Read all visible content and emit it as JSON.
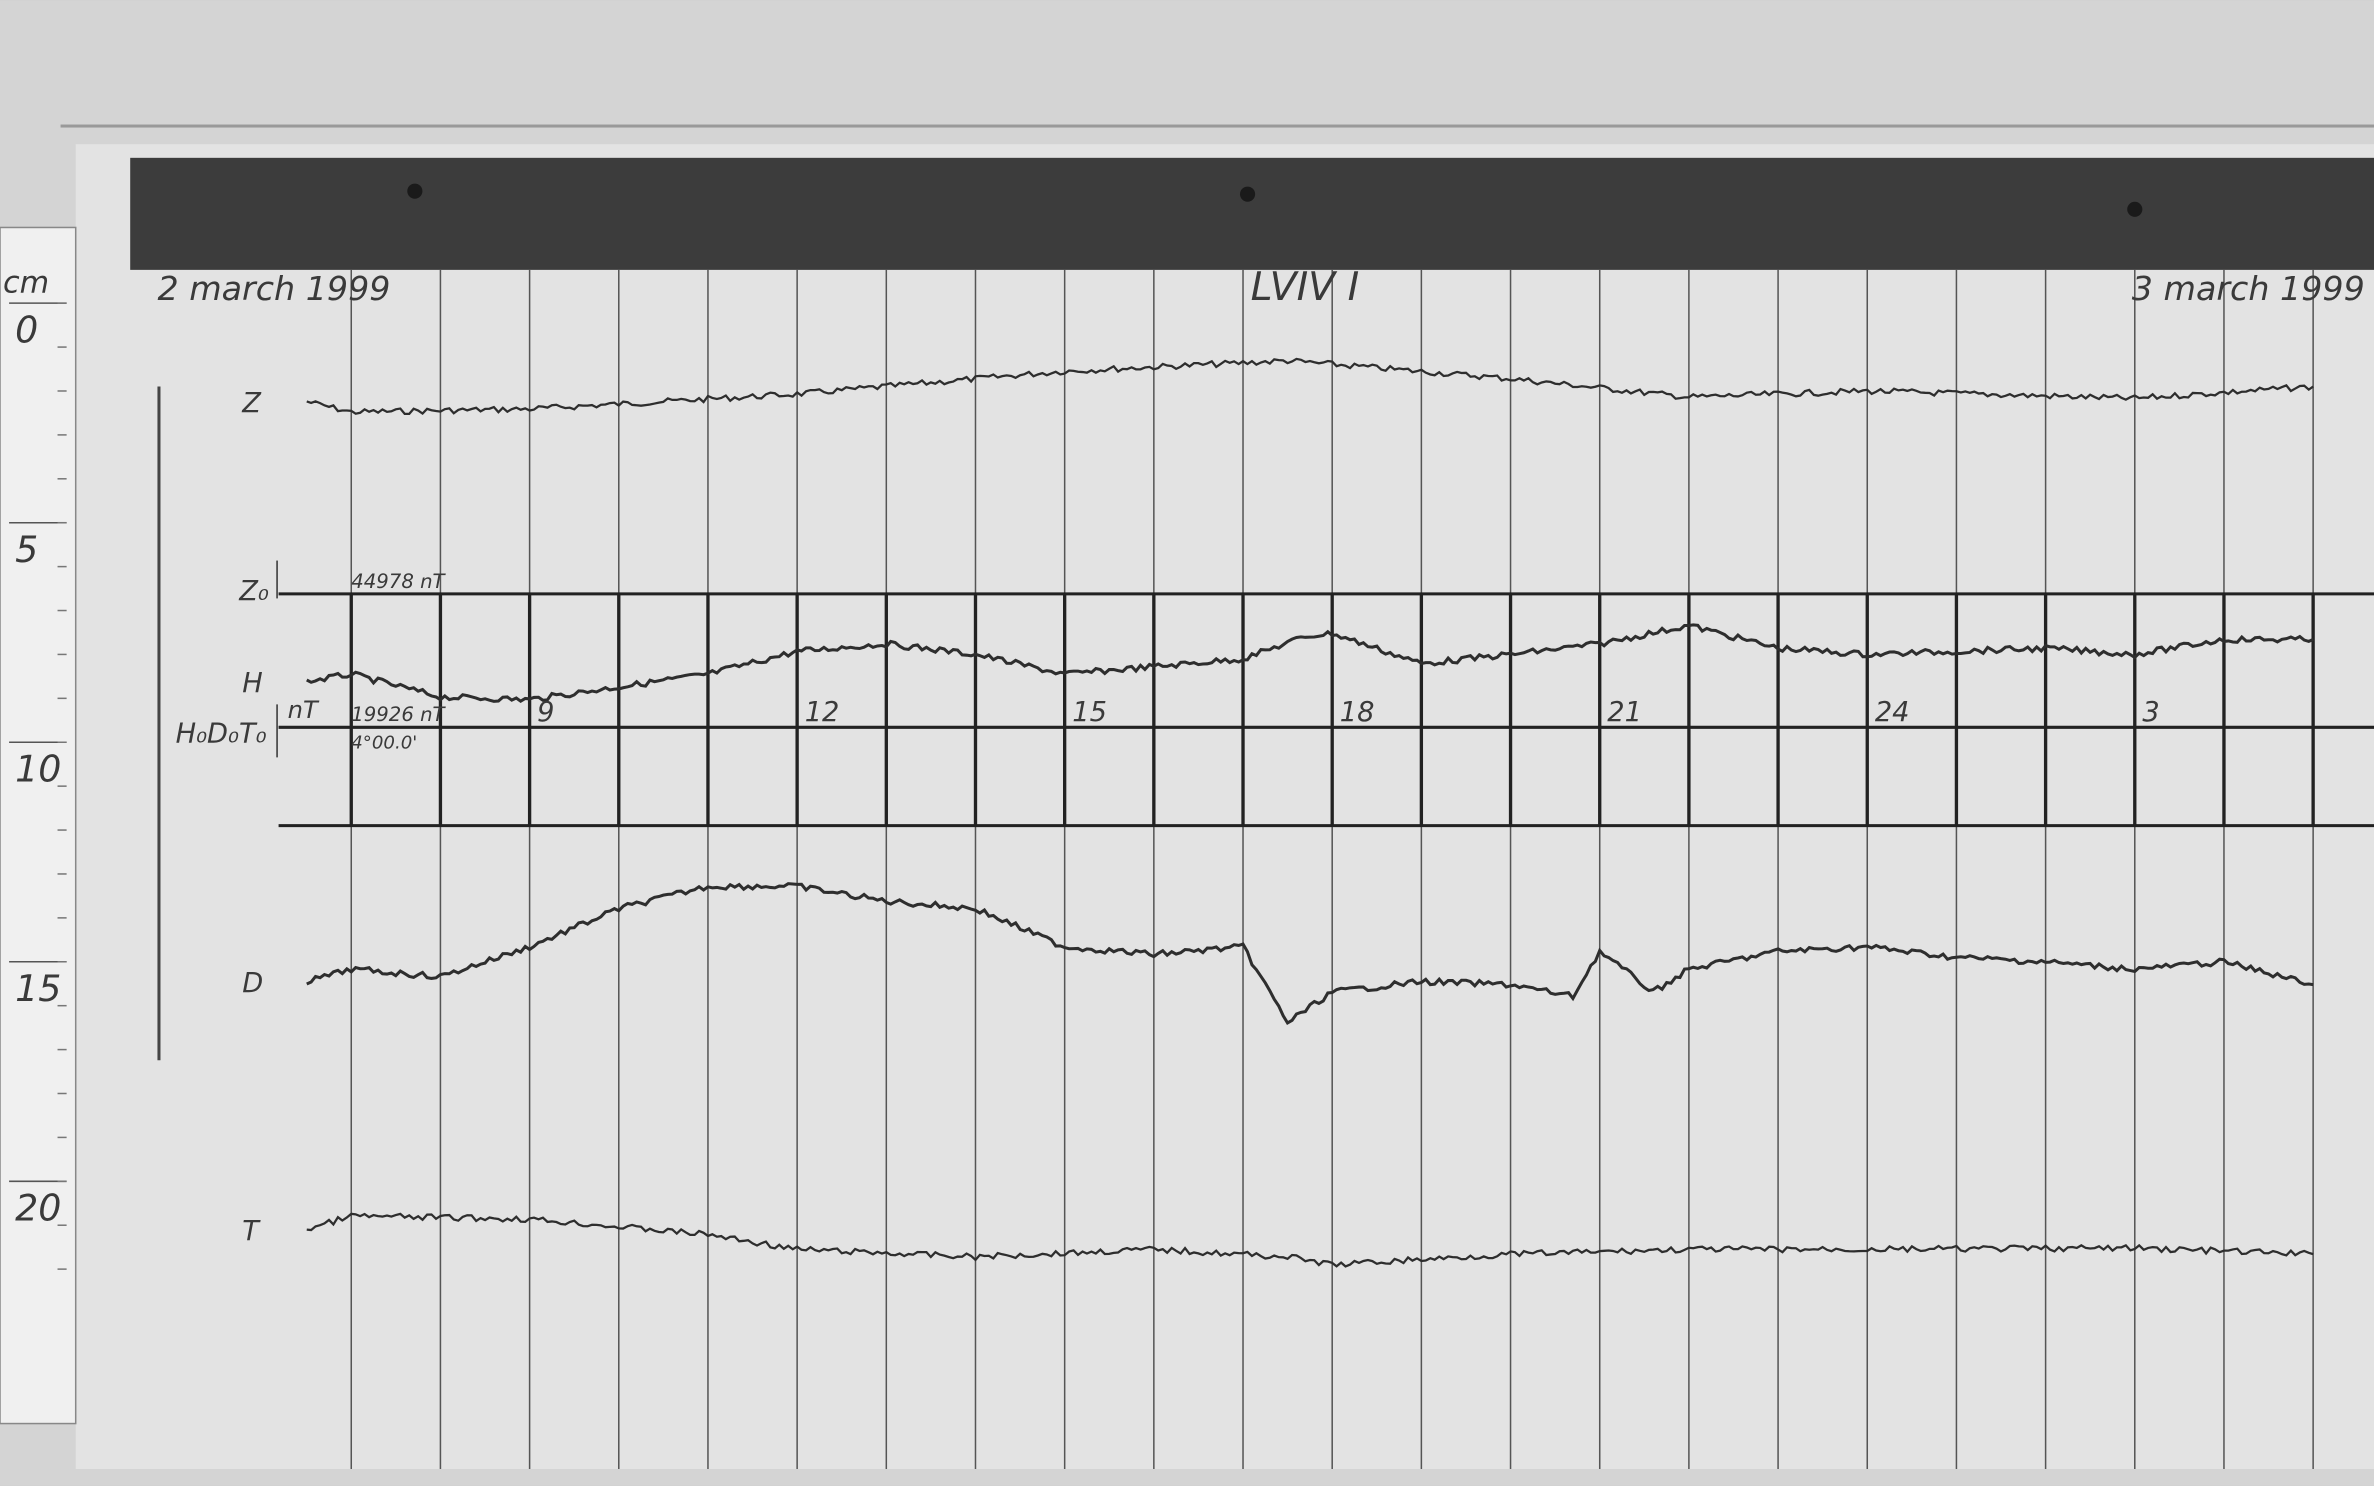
{
  "chart_data": {
    "type": "line",
    "title": "LVIV I",
    "date_start": "2 march 1999",
    "date_end": "3 march 1999",
    "ruler": {
      "unit": "cm",
      "ticks": [
        "0",
        "5",
        "10",
        "15",
        "20"
      ]
    },
    "x_unit": "hour (UT)",
    "xlim": [
      7,
      29
    ],
    "hour_ticks": [
      {
        "hour": 9,
        "label": "9"
      },
      {
        "hour": 12,
        "label": "12"
      },
      {
        "hour": 15,
        "label": "15"
      },
      {
        "hour": 18,
        "label": "18"
      },
      {
        "hour": 21,
        "label": "21"
      },
      {
        "hour": 24,
        "label": "24"
      },
      {
        "hour": 27,
        "label": "3"
      }
    ],
    "grid": true,
    "baselines": [
      {
        "name": "Z0",
        "label": "Z₀",
        "y_cm": 6.62,
        "value_label": "44978 nT"
      },
      {
        "name": "H0 D0 T0",
        "label": "H₀D₀T₀",
        "y_cm": 9.66,
        "value_label": "19926 nT",
        "value_label_2": "4°00.0'",
        "unit_label": "nT"
      },
      {
        "y_cm": 11.9
      }
    ],
    "series": [
      {
        "name": "Z",
        "x": [
          6.5,
          7,
          9,
          12,
          15,
          17.5,
          20,
          22,
          24,
          27,
          29
        ],
        "y_cm": [
          2.24,
          2.48,
          2.41,
          2.07,
          1.55,
          1.31,
          1.72,
          2.14,
          2.0,
          2.17,
          1.9
        ]
      },
      {
        "name": "H",
        "x": [
          6.5,
          7,
          8,
          9,
          11,
          12,
          13,
          14,
          15,
          16,
          17,
          17.7,
          18,
          19,
          20,
          21,
          22,
          23,
          24,
          26,
          27,
          28,
          29
        ],
        "y_cm": [
          8.62,
          8.45,
          8.97,
          9.03,
          8.45,
          7.93,
          7.76,
          8.0,
          8.45,
          8.28,
          8.1,
          7.59,
          7.52,
          8.21,
          8.0,
          7.76,
          7.34,
          7.86,
          8.0,
          7.86,
          8.0,
          7.66,
          7.66
        ]
      },
      {
        "name": "D",
        "x": [
          6.5,
          7,
          8,
          9,
          10,
          11,
          12,
          13,
          14,
          15,
          16,
          17,
          17.5,
          18,
          19,
          20,
          20.7,
          21,
          21.6,
          22,
          23,
          24,
          25,
          26,
          27,
          28,
          29
        ],
        "y_cm": [
          15.45,
          15.17,
          15.34,
          14.66,
          13.79,
          13.28,
          13.28,
          13.62,
          13.79,
          14.66,
          14.83,
          14.66,
          16.38,
          15.69,
          15.45,
          15.52,
          15.79,
          14.76,
          15.69,
          15.17,
          14.76,
          14.66,
          14.9,
          15.0,
          15.17,
          15.0,
          15.52
        ]
      },
      {
        "name": "T",
        "x": [
          6.5,
          7,
          9,
          11,
          12,
          14,
          16,
          17.5,
          18,
          20,
          22,
          24,
          27,
          29
        ],
        "y_cm": [
          21.1,
          20.79,
          20.86,
          21.21,
          21.55,
          21.72,
          21.55,
          21.72,
          21.9,
          21.66,
          21.55,
          21.55,
          21.52,
          21.66
        ]
      }
    ],
    "colors": {
      "paper": "#e3e3e3",
      "trace": "#2e2e2e",
      "tape": "#3c3c3c"
    }
  }
}
